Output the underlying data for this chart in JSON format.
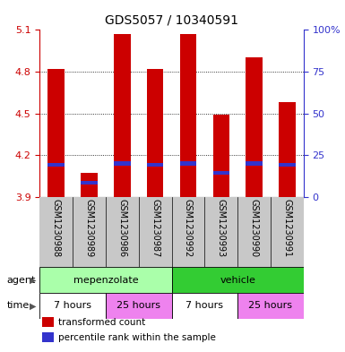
{
  "title": "GDS5057 / 10340591",
  "samples": [
    "GSM1230988",
    "GSM1230989",
    "GSM1230986",
    "GSM1230987",
    "GSM1230992",
    "GSM1230993",
    "GSM1230990",
    "GSM1230991"
  ],
  "bar_tops": [
    4.82,
    4.07,
    5.07,
    4.82,
    5.07,
    4.49,
    4.9,
    4.58
  ],
  "bar_bottom": 3.9,
  "blue_positions": [
    4.13,
    4.0,
    4.14,
    4.13,
    4.14,
    4.07,
    4.14,
    4.13
  ],
  "bar_color": "#cc0000",
  "blue_color": "#3333cc",
  "ylim_left": [
    3.9,
    5.1
  ],
  "ylim_right": [
    0,
    100
  ],
  "yticks_left": [
    3.9,
    4.2,
    4.5,
    4.8,
    5.1
  ],
  "yticks_right": [
    0,
    25,
    50,
    75,
    100
  ],
  "ytick_labels_left": [
    "3.9",
    "4.2",
    "4.5",
    "4.8",
    "5.1"
  ],
  "ytick_labels_right": [
    "0",
    "25",
    "50",
    "75",
    "100%"
  ],
  "left_tick_color": "#cc0000",
  "right_tick_color": "#3333cc",
  "agent_groups": [
    {
      "label": "mepenzolate",
      "start": 0,
      "end": 4,
      "color": "#aaffaa"
    },
    {
      "label": "vehicle",
      "start": 4,
      "end": 8,
      "color": "#33cc33"
    }
  ],
  "time_groups": [
    {
      "label": "7 hours",
      "start": 0,
      "end": 2,
      "color": "#ffffff"
    },
    {
      "label": "25 hours",
      "start": 2,
      "end": 4,
      "color": "#ee82ee"
    },
    {
      "label": "7 hours",
      "start": 4,
      "end": 6,
      "color": "#ffffff"
    },
    {
      "label": "25 hours",
      "start": 6,
      "end": 8,
      "color": "#ee82ee"
    }
  ],
  "legend_items": [
    {
      "label": "transformed count",
      "color": "#cc0000"
    },
    {
      "label": "percentile rank within the sample",
      "color": "#3333cc"
    }
  ],
  "bar_width": 0.5,
  "bg_color": "#ffffff",
  "sample_bg_color": "#c8c8c8",
  "grid_yticks": [
    4.2,
    4.5,
    4.8
  ]
}
